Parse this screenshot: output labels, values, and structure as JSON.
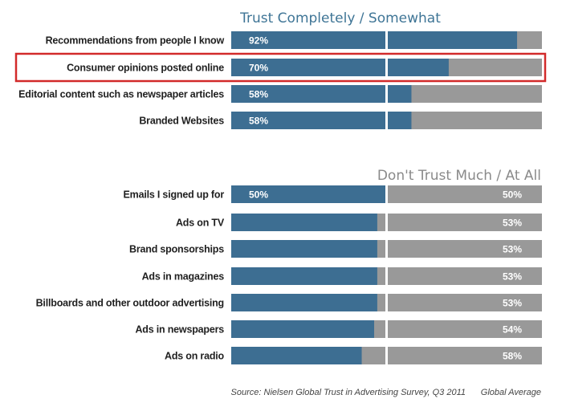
{
  "chart_data": {
    "type": "bar",
    "orientation": "horizontal",
    "stacked": true,
    "headers": {
      "trust": "Trust Completely / Somewhat",
      "distrust": "Don't Trust Much / At All"
    },
    "highlighted_category": "Consumer opinions posted online",
    "groups": [
      {
        "items": [
          {
            "category": "Recommendations from people I know",
            "trust": 92,
            "trust_label": "92%"
          },
          {
            "category": "Consumer opinions posted online",
            "trust": 70,
            "trust_label": "70%"
          },
          {
            "category": "Editorial content such as newspaper articles",
            "trust": 58,
            "trust_label": "58%"
          },
          {
            "category": "Branded Websites",
            "trust": 58,
            "trust_label": "58%"
          }
        ]
      },
      {
        "items": [
          {
            "category": "Emails I signed up for",
            "trust": 50,
            "trust_label": "50%",
            "distrust_label": "50%"
          },
          {
            "category": "Ads on TV",
            "trust": 47,
            "distrust_label": "53%"
          },
          {
            "category": "Brand sponsorships",
            "trust": 47,
            "distrust_label": "53%"
          },
          {
            "category": "Ads in magazines",
            "trust": 47,
            "distrust_label": "53%"
          },
          {
            "category": "Billboards and other outdoor advertising",
            "trust": 47,
            "distrust_label": "53%"
          },
          {
            "category": "Ads in newspapers",
            "trust": 46,
            "distrust_label": "54%"
          },
          {
            "category": "Ads on radio",
            "trust": 42,
            "distrust_label": "58%"
          }
        ]
      }
    ],
    "xlim": [
      0,
      100
    ]
  },
  "colors": {
    "trust": "#3d6e92",
    "distrust": "#999999",
    "highlight": "#d22a2a"
  },
  "footer": {
    "source": "Source: Nielsen Global Trust in Advertising Survey, Q3 2011",
    "note": "Global Average"
  }
}
